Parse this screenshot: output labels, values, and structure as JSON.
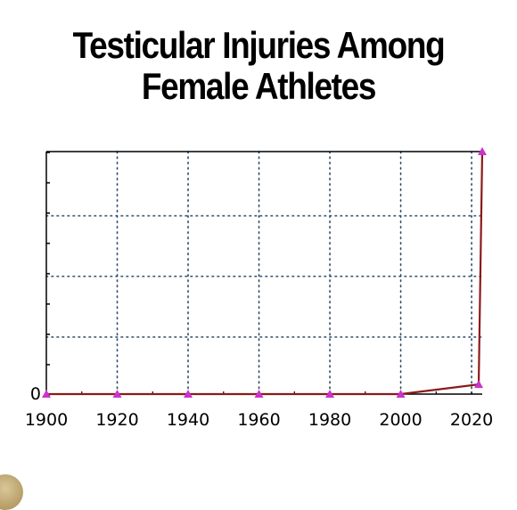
{
  "chart_data": {
    "type": "line",
    "title": [
      "Testicular Injuries Among",
      "Female Athletes"
    ],
    "xlabel": "",
    "ylabel": "",
    "xlim": [
      1900,
      2023
    ],
    "ylim": [
      0,
      100
    ],
    "x_ticks": [
      1900,
      1920,
      1940,
      1960,
      1980,
      2000,
      2020
    ],
    "y_tick_labels": [
      "0"
    ],
    "grid": true,
    "legend": "none",
    "series": [
      {
        "x": [
          1900,
          1920,
          1940,
          1960,
          1980,
          2000,
          2022,
          2023
        ],
        "y": [
          0,
          0,
          0,
          0,
          0,
          0,
          4,
          100
        ]
      }
    ]
  },
  "colors": {
    "line": "#8b1a1a",
    "marker": "#cc33cc",
    "grid": "#2a4a6a",
    "axis": "#000000"
  },
  "brand": {
    "logo": "round-gold-logo"
  }
}
